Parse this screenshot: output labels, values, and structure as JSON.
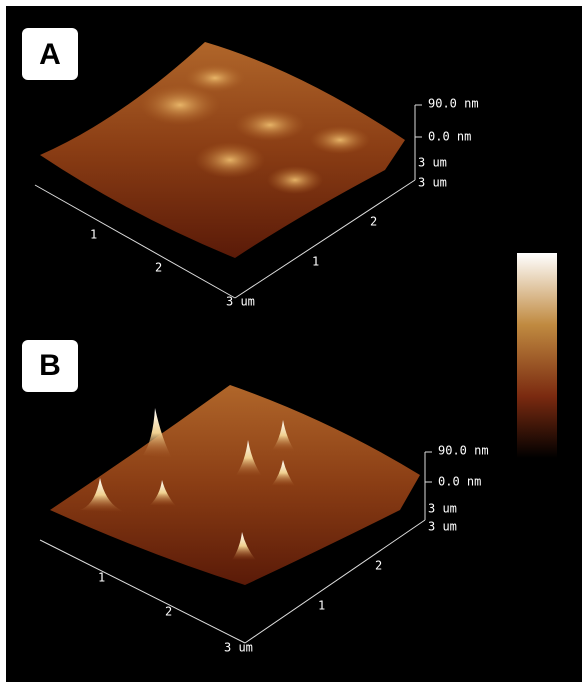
{
  "panels": [
    {
      "label": "A",
      "z_top": "90.0 nm",
      "z_bottom": "0.0 nm",
      "corner_z": "3 um",
      "corner_y": "3 um",
      "x_ticks": [
        "1",
        "2"
      ],
      "x_end": "3 um",
      "y_ticks": [
        "1",
        "2"
      ]
    },
    {
      "label": "B",
      "z_top": "90.0 nm",
      "z_bottom": "0.0 nm",
      "corner_z": "3 um",
      "corner_y": "3 um",
      "x_ticks": [
        "1",
        "2"
      ],
      "x_end": "3 um",
      "y_ticks": [
        "1",
        "2"
      ]
    }
  ]
}
